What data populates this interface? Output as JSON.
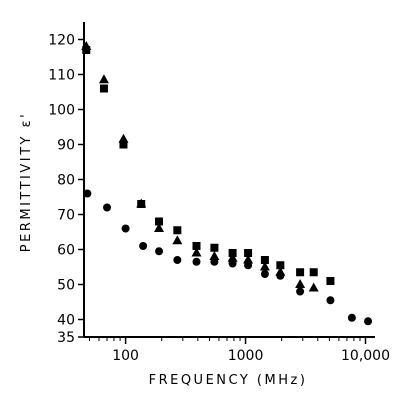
{
  "chart_data": {
    "type": "scatter",
    "title": "",
    "xlabel": "FREQUENCY (MHz)",
    "ylabel": "PERMITTIVITY ε'",
    "x_scale": "log",
    "xlim": [
      45,
      12000
    ],
    "ylim": [
      35,
      125
    ],
    "grid": false,
    "legend": "none",
    "x_ticks": [
      {
        "value": 100,
        "label": "100"
      },
      {
        "value": 1000,
        "label": "1000"
      },
      {
        "value": 10000,
        "label": "10,000"
      }
    ],
    "y_ticks": [
      {
        "value": 120,
        "label": "120"
      },
      {
        "value": 110,
        "label": "110"
      },
      {
        "value": 100,
        "label": "100"
      },
      {
        "value": 90,
        "label": "90"
      },
      {
        "value": 80,
        "label": "80"
      },
      {
        "value": 70,
        "label": "70"
      },
      {
        "value": 60,
        "label": "60"
      },
      {
        "value": 50,
        "label": "50"
      },
      {
        "value": 40,
        "label": "40"
      },
      {
        "value": 35,
        "label": "35"
      }
    ],
    "series": [
      {
        "marker": "square",
        "color": "#000000",
        "points": [
          {
            "x": 47,
            "y": 117
          },
          {
            "x": 66,
            "y": 106
          },
          {
            "x": 96,
            "y": 90
          },
          {
            "x": 135,
            "y": 73
          },
          {
            "x": 190,
            "y": 68
          },
          {
            "x": 270,
            "y": 65.5
          },
          {
            "x": 390,
            "y": 61
          },
          {
            "x": 550,
            "y": 60.5
          },
          {
            "x": 780,
            "y": 59
          },
          {
            "x": 1050,
            "y": 59
          },
          {
            "x": 1450,
            "y": 57
          },
          {
            "x": 1950,
            "y": 55.5
          },
          {
            "x": 2850,
            "y": 53.5
          },
          {
            "x": 3700,
            "y": 53.5
          },
          {
            "x": 5100,
            "y": 51
          }
        ]
      },
      {
        "marker": "triangle",
        "color": "#000000",
        "points": [
          {
            "x": 47,
            "y": 118
          },
          {
            "x": 66,
            "y": 108.5
          },
          {
            "x": 96,
            "y": 91.5
          },
          {
            "x": 135,
            "y": 73
          },
          {
            "x": 190,
            "y": 66
          },
          {
            "x": 270,
            "y": 62.5
          },
          {
            "x": 390,
            "y": 59
          },
          {
            "x": 550,
            "y": 58
          },
          {
            "x": 780,
            "y": 57.5
          },
          {
            "x": 1050,
            "y": 57
          },
          {
            "x": 1450,
            "y": 55
          },
          {
            "x": 1950,
            "y": 53.5
          },
          {
            "x": 2850,
            "y": 50
          },
          {
            "x": 3700,
            "y": 49
          }
        ]
      },
      {
        "marker": "circle",
        "color": "#000000",
        "points": [
          {
            "x": 48,
            "y": 76
          },
          {
            "x": 70,
            "y": 72
          },
          {
            "x": 100,
            "y": 66
          },
          {
            "x": 140,
            "y": 61
          },
          {
            "x": 190,
            "y": 59.5
          },
          {
            "x": 270,
            "y": 57
          },
          {
            "x": 390,
            "y": 56.5
          },
          {
            "x": 550,
            "y": 56.5
          },
          {
            "x": 780,
            "y": 56
          },
          {
            "x": 1050,
            "y": 55.5
          },
          {
            "x": 1450,
            "y": 53
          },
          {
            "x": 1950,
            "y": 52.5
          },
          {
            "x": 2850,
            "y": 48
          },
          {
            "x": 5100,
            "y": 45.5
          },
          {
            "x": 7700,
            "y": 40.5
          },
          {
            "x": 10500,
            "y": 39.5
          }
        ]
      }
    ]
  }
}
